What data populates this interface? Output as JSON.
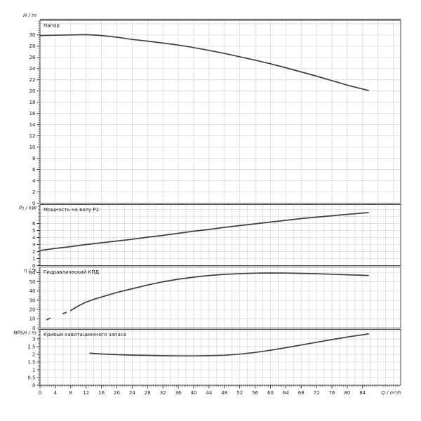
{
  "chart_data": {
    "type": "line",
    "xlabel": "Q / m³/h",
    "xlim": [
      0,
      93.9
    ],
    "x_ticks": [
      0,
      4,
      8,
      12,
      16,
      20,
      24,
      28,
      32,
      36,
      40,
      44,
      48,
      52,
      56,
      60,
      64,
      68,
      72,
      76,
      80,
      84
    ],
    "x_minor_step": 0.5,
    "grid": true,
    "legend_position": "none",
    "colors": {
      "curve": "#36404d",
      "grid": "#d9d9d9",
      "frame": "#4a4a4a",
      "frame_top": "#6e6e6e",
      "text": "#1a1a1a",
      "tick": "#333333"
    },
    "panels": [
      {
        "name": "head",
        "title": "Напор",
        "ylabel": "H / m",
        "ylim": [
          0,
          32.6
        ],
        "yticks": [
          0,
          2,
          4,
          6,
          8,
          10,
          12,
          14,
          16,
          18,
          20,
          22,
          24,
          26,
          28,
          30
        ],
        "y_minor_step": 0.4,
        "grid_x_step": 4,
        "grid_y_step": 2,
        "series": [
          {
            "name": "H(Q)",
            "dash": false,
            "points": [
              [
                0,
                29.9
              ],
              [
                4,
                29.95
              ],
              [
                8,
                30
              ],
              [
                12,
                30.05
              ],
              [
                16,
                29.9
              ],
              [
                20,
                29.6
              ],
              [
                24,
                29.2
              ],
              [
                28,
                28.9
              ],
              [
                32,
                28.55
              ],
              [
                36,
                28.2
              ],
              [
                40,
                27.75
              ],
              [
                44,
                27.25
              ],
              [
                48,
                26.7
              ],
              [
                52,
                26.1
              ],
              [
                56,
                25.5
              ],
              [
                60,
                24.85
              ],
              [
                64,
                24.15
              ],
              [
                68,
                23.4
              ],
              [
                72,
                22.65
              ],
              [
                76,
                21.85
              ],
              [
                80,
                21.05
              ],
              [
                85.5,
                20.1
              ]
            ]
          }
        ]
      },
      {
        "name": "power",
        "title": "Мощность на валу P2",
        "ylabel": "P₂ / kW",
        "ylim": [
          0,
          8.7
        ],
        "yticks": [
          0,
          1,
          2,
          3,
          4,
          5,
          6
        ],
        "y_minor_step": 0.2,
        "grid_x_step": 2,
        "grid_y_step": 1,
        "series": [
          {
            "name": "P2(Q)",
            "dash": false,
            "points": [
              [
                0,
                2.15
              ],
              [
                4,
                2.45
              ],
              [
                8,
                2.7
              ],
              [
                12,
                3.0
              ],
              [
                16,
                3.25
              ],
              [
                20,
                3.5
              ],
              [
                24,
                3.75
              ],
              [
                28,
                4.05
              ],
              [
                32,
                4.3
              ],
              [
                36,
                4.6
              ],
              [
                40,
                4.9
              ],
              [
                44,
                5.15
              ],
              [
                48,
                5.45
              ],
              [
                52,
                5.7
              ],
              [
                56,
                5.95
              ],
              [
                60,
                6.2
              ],
              [
                64,
                6.45
              ],
              [
                68,
                6.7
              ],
              [
                72,
                6.9
              ],
              [
                76,
                7.1
              ],
              [
                80,
                7.3
              ],
              [
                85.5,
                7.55
              ]
            ]
          }
        ]
      },
      {
        "name": "efficiency",
        "title": "Гидравлический КПД",
        "ylabel": "η / %",
        "ylim": [
          0,
          66
        ],
        "yticks": [
          0,
          10,
          20,
          30,
          40,
          50,
          60
        ],
        "y_minor_step": 2,
        "grid_x_step": 2,
        "grid_y_step": 10,
        "series": [
          {
            "name": "eta-dash-1",
            "dash": true,
            "points": [
              [
                1.8,
                9
              ],
              [
                3,
                11.5
              ]
            ]
          },
          {
            "name": "eta-dash-2",
            "dash": true,
            "points": [
              [
                6,
                15.5
              ],
              [
                7.5,
                18
              ]
            ]
          },
          {
            "name": "eta(Q)",
            "dash": false,
            "points": [
              [
                8,
                19
              ],
              [
                10,
                24
              ],
              [
                12,
                28
              ],
              [
                14,
                31
              ],
              [
                16,
                33.5
              ],
              [
                20,
                38.5
              ],
              [
                24,
                42.5
              ],
              [
                28,
                46.5
              ],
              [
                32,
                50
              ],
              [
                36,
                52.8
              ],
              [
                40,
                55
              ],
              [
                44,
                56.8
              ],
              [
                48,
                58
              ],
              [
                52,
                58.8
              ],
              [
                56,
                59.3
              ],
              [
                60,
                59.5
              ],
              [
                64,
                59.4
              ],
              [
                68,
                59.1
              ],
              [
                72,
                58.7
              ],
              [
                76,
                58.2
              ],
              [
                80,
                57.6
              ],
              [
                85.5,
                56.8
              ]
            ]
          }
        ]
      },
      {
        "name": "npsh",
        "title": "Кривые кавитационного запаса",
        "ylabel": "NPSH / m",
        "ylim": [
          0,
          3.61
        ],
        "yticks": [
          0,
          0.5,
          1,
          1.5,
          2,
          2.5,
          3
        ],
        "y_minor_step": 0.1,
        "grid_x_step": 2,
        "grid_y_step": 0.5,
        "series": [
          {
            "name": "NPSH(Q)",
            "dash": false,
            "points": [
              [
                13,
                2.07
              ],
              [
                16,
                2.02
              ],
              [
                20,
                1.98
              ],
              [
                24,
                1.95
              ],
              [
                28,
                1.93
              ],
              [
                32,
                1.91
              ],
              [
                36,
                1.9
              ],
              [
                40,
                1.9
              ],
              [
                44,
                1.91
              ],
              [
                48,
                1.94
              ],
              [
                52,
                2.01
              ],
              [
                56,
                2.12
              ],
              [
                60,
                2.26
              ],
              [
                64,
                2.43
              ],
              [
                68,
                2.6
              ],
              [
                72,
                2.78
              ],
              [
                76,
                2.95
              ],
              [
                80,
                3.12
              ],
              [
                85.5,
                3.32
              ]
            ]
          }
        ]
      }
    ]
  }
}
